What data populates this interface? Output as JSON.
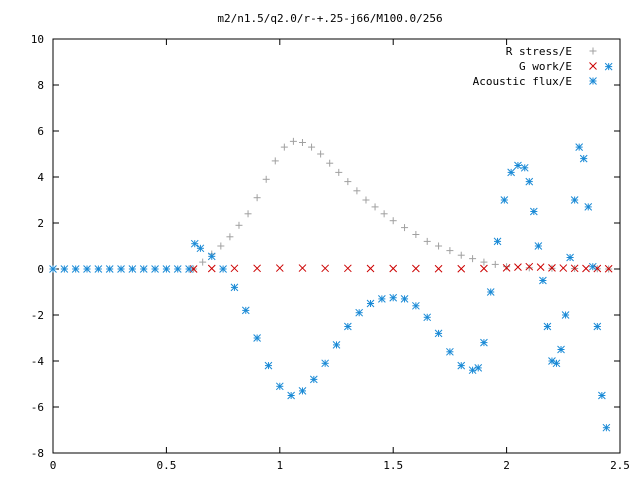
{
  "chart_data": {
    "type": "scatter",
    "title": "m2/n1.5/q2.0/r-+.25-j66/M100.0/256",
    "xlabel": "",
    "ylabel": "",
    "xlim": [
      0,
      2.5
    ],
    "ylim": [
      -8,
      10
    ],
    "x_ticks": [
      "0",
      "0.5",
      "1",
      "1.5",
      "2",
      "2.5"
    ],
    "y_ticks": [
      "-8",
      "-6",
      "-4",
      "-2",
      "0",
      "2",
      "4",
      "6",
      "8",
      "10"
    ],
    "grid": false,
    "legend_position": "top-right",
    "series": [
      {
        "name": "R stress/E",
        "marker": "plus",
        "color": "#a0a0a0",
        "x": [
          0.62,
          0.66,
          0.7,
          0.74,
          0.78,
          0.82,
          0.86,
          0.9,
          0.94,
          0.98,
          1.02,
          1.06,
          1.1,
          1.14,
          1.18,
          1.22,
          1.26,
          1.3,
          1.34,
          1.38,
          1.42,
          1.46,
          1.5,
          1.55,
          1.6,
          1.65,
          1.7,
          1.75,
          1.8,
          1.85,
          1.9,
          1.95,
          2.0,
          2.1,
          2.2,
          2.3,
          2.4,
          2.45
        ],
        "y": [
          0.0,
          0.3,
          0.65,
          1.0,
          1.4,
          1.9,
          2.4,
          3.1,
          3.9,
          4.7,
          5.3,
          5.55,
          5.5,
          5.3,
          5.0,
          4.6,
          4.2,
          3.8,
          3.4,
          3.0,
          2.7,
          2.4,
          2.1,
          1.8,
          1.5,
          1.2,
          1.0,
          0.8,
          0.6,
          0.45,
          0.3,
          0.2,
          0.1,
          0.05,
          0.03,
          0.02,
          0.01,
          0.0
        ]
      },
      {
        "name": "G work/E",
        "marker": "cross",
        "color": "#cc0000",
        "x": [
          0.62,
          0.7,
          0.8,
          0.9,
          1.0,
          1.1,
          1.2,
          1.3,
          1.4,
          1.5,
          1.6,
          1.7,
          1.8,
          1.9,
          2.0,
          2.05,
          2.1,
          2.15,
          2.2,
          2.25,
          2.3,
          2.35,
          2.4,
          2.45
        ],
        "y": [
          0.0,
          0.02,
          0.03,
          0.03,
          0.04,
          0.04,
          0.03,
          0.03,
          0.02,
          0.02,
          0.02,
          0.01,
          0.01,
          0.02,
          0.05,
          0.08,
          0.1,
          0.08,
          0.05,
          0.04,
          0.03,
          0.02,
          0.02,
          0.01
        ]
      },
      {
        "name": "Acoustic flux/E",
        "marker": "star",
        "color": "#1a8ad6",
        "x": [
          0.0,
          0.05,
          0.1,
          0.15,
          0.2,
          0.25,
          0.3,
          0.35,
          0.4,
          0.45,
          0.5,
          0.55,
          0.6,
          0.625,
          0.65,
          0.7,
          0.75,
          0.8,
          0.85,
          0.9,
          0.95,
          1.0,
          1.05,
          1.1,
          1.15,
          1.2,
          1.25,
          1.3,
          1.35,
          1.4,
          1.45,
          1.5,
          1.55,
          1.6,
          1.65,
          1.7,
          1.75,
          1.8,
          1.85,
          1.875,
          1.9,
          1.93,
          1.96,
          1.99,
          2.02,
          2.05,
          2.08,
          2.1,
          2.12,
          2.14,
          2.16,
          2.18,
          2.2,
          2.22,
          2.24,
          2.26,
          2.28,
          2.3,
          2.32,
          2.34,
          2.36,
          2.38,
          2.4,
          2.42,
          2.44,
          2.45
        ],
        "y": [
          0,
          0,
          0,
          0,
          0,
          0,
          0,
          0,
          0,
          0,
          0,
          0,
          0,
          1.1,
          0.9,
          0.55,
          0.0,
          -0.8,
          -1.8,
          -3.0,
          -4.2,
          -5.1,
          -5.5,
          -5.3,
          -4.8,
          -4.1,
          -3.3,
          -2.5,
          -1.9,
          -1.5,
          -1.3,
          -1.25,
          -1.3,
          -1.6,
          -2.1,
          -2.8,
          -3.6,
          -4.2,
          -4.4,
          -4.3,
          -3.2,
          -1.0,
          1.2,
          3.0,
          4.2,
          4.5,
          4.4,
          3.8,
          2.5,
          1.0,
          -0.5,
          -2.5,
          -4.0,
          -4.1,
          -3.5,
          -2.0,
          0.5,
          3.0,
          5.3,
          4.8,
          2.7,
          0.1,
          -2.5,
          -5.5,
          -6.9,
          8.8
        ]
      }
    ]
  }
}
